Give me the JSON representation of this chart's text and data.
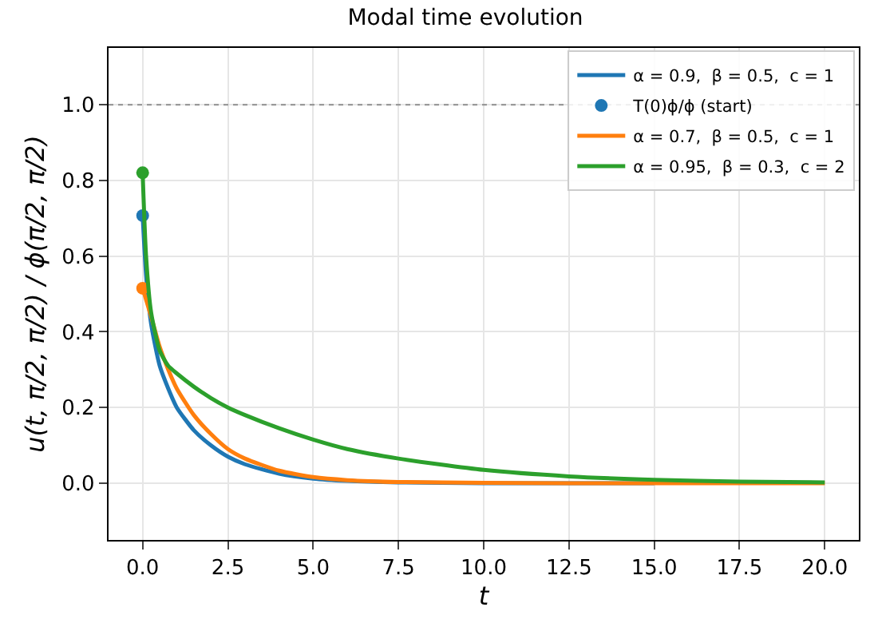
{
  "chart_data": {
    "type": "line",
    "title": "Modal time evolution",
    "xlabel": "t",
    "ylabel": "u(t, π/2, π/2) / ϕ(π/2, π/2)",
    "xlim": [
      -1,
      21
    ],
    "xticks": [
      {
        "value": 0,
        "label": "0.0"
      },
      {
        "value": 2.5,
        "label": "2.5"
      },
      {
        "value": 5,
        "label": "5.0"
      },
      {
        "value": 7.5,
        "label": "7.5"
      },
      {
        "value": 10,
        "label": "10.0"
      },
      {
        "value": 12.5,
        "label": "12.5"
      },
      {
        "value": 15,
        "label": "15.0"
      },
      {
        "value": 17.5,
        "label": "17.5"
      },
      {
        "value": 20,
        "label": "20.0"
      }
    ],
    "ylim": [
      -0.15,
      1.15
    ],
    "yticks": [
      {
        "value": 0,
        "label": "0.0"
      },
      {
        "value": 0.2,
        "label": "0.2"
      },
      {
        "value": 0.4,
        "label": "0.4"
      },
      {
        "value": 0.6,
        "label": "0.6"
      },
      {
        "value": 0.8,
        "label": "0.8"
      },
      {
        "value": 1,
        "label": "1.0"
      }
    ],
    "grid": true,
    "legend": "top right",
    "marker": "none",
    "line_style": "solid",
    "ref_lines": [
      {
        "axis": "y",
        "value": 1,
        "color": "#999999",
        "line_style": "dotted"
      }
    ],
    "series": [
      {
        "name": "α = 0.9,  β = 0.5,  c = 1",
        "color": "#1f77b4",
        "x": [
          0,
          0.1,
          0.25,
          0.5,
          0.75,
          1,
          1.5,
          2,
          2.5,
          3,
          4,
          5,
          6,
          7.5,
          10,
          12.5,
          15
        ],
        "values": [
          0.707,
          0.55,
          0.42,
          0.31,
          0.25,
          0.2,
          0.14,
          0.1,
          0.07,
          0.05,
          0.025,
          0.012,
          0.006,
          0.002,
          0,
          0,
          0
        ]
      },
      {
        "name": "T(0)ϕ/ϕ (start)",
        "type": "scatter",
        "marker": "circle",
        "color": "#1f77b4",
        "colors": [
          "#1f77b4",
          "#ff7f0e",
          "#2ca02c"
        ],
        "x": [
          0,
          0,
          0
        ],
        "values": [
          0.707,
          0.515,
          0.82
        ]
      },
      {
        "name": "α = 0.7,  β = 0.5,  c = 1",
        "color": "#ff7f0e",
        "x": [
          0,
          0.25,
          0.5,
          0.75,
          1,
          1.5,
          2,
          2.5,
          3,
          4,
          5,
          6,
          7.5,
          10,
          12.5,
          15,
          17.5,
          20
        ],
        "values": [
          0.515,
          0.44,
          0.36,
          0.3,
          0.25,
          0.18,
          0.13,
          0.09,
          0.065,
          0.033,
          0.016,
          0.008,
          0.003,
          0.001,
          0,
          0,
          0,
          0
        ]
      },
      {
        "name": "α = 0.95,  β = 0.3,  c = 2",
        "color": "#2ca02c",
        "x": [
          0,
          0.1,
          0.25,
          0.5,
          0.75,
          1,
          1.5,
          2,
          2.5,
          3,
          4,
          5,
          6,
          7.5,
          10,
          12.5,
          15,
          17.5,
          20
        ],
        "values": [
          0.82,
          0.6,
          0.45,
          0.35,
          0.31,
          0.29,
          0.255,
          0.225,
          0.2,
          0.18,
          0.145,
          0.115,
          0.09,
          0.065,
          0.035,
          0.018,
          0.009,
          0.004,
          0.002
        ]
      }
    ]
  }
}
